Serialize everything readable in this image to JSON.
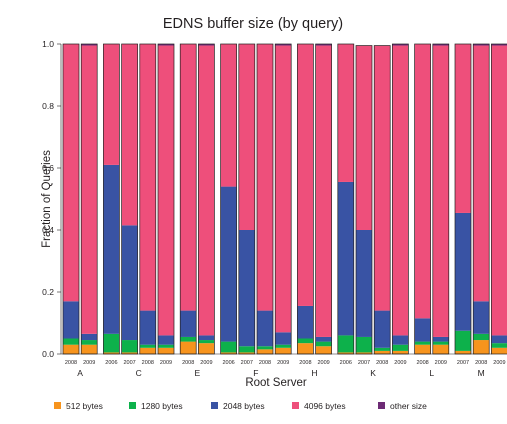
{
  "chart_data": {
    "type": "bar",
    "stacked": true,
    "title": "EDNS buffer size (by query)",
    "xlabel": "Root Server",
    "ylabel": "Fraction of Queries",
    "ylim": [
      0,
      1.0
    ],
    "yticks": [
      "0.0",
      "0.2",
      "0.4",
      "0.6",
      "0.8",
      "1.0"
    ],
    "grid": false,
    "legend_position": "bottom",
    "groups": [
      {
        "server": "A",
        "years": [
          "2008",
          "2009"
        ]
      },
      {
        "server": "C",
        "years": [
          "2006",
          "2007",
          "2008",
          "2009"
        ]
      },
      {
        "server": "E",
        "years": [
          "2008",
          "2009"
        ]
      },
      {
        "server": "F",
        "years": [
          "2006",
          "2007",
          "2008",
          "2009"
        ]
      },
      {
        "server": "H",
        "years": [
          "2008",
          "2009"
        ]
      },
      {
        "server": "K",
        "years": [
          "2006",
          "2007",
          "2008",
          "2009"
        ]
      },
      {
        "server": "L",
        "years": [
          "2008",
          "2009"
        ]
      },
      {
        "server": "M",
        "years": [
          "2007",
          "2008",
          "2009"
        ]
      }
    ],
    "series": [
      {
        "name": "512 bytes",
        "color": "#f7941d",
        "values": [
          0.03,
          0.03,
          0.005,
          0.005,
          0.02,
          0.02,
          0.04,
          0.035,
          0.005,
          0.005,
          0.015,
          0.02,
          0.035,
          0.025,
          0.005,
          0.005,
          0.01,
          0.01,
          0.03,
          0.03,
          0.01,
          0.045,
          0.02
        ]
      },
      {
        "name": "1280 bytes",
        "color": "#0db14b",
        "values": [
          0.02,
          0.015,
          0.06,
          0.04,
          0.01,
          0.01,
          0.015,
          0.01,
          0.035,
          0.02,
          0.01,
          0.01,
          0.015,
          0.015,
          0.055,
          0.05,
          0.01,
          0.02,
          0.01,
          0.01,
          0.065,
          0.02,
          0.015
        ]
      },
      {
        "name": "2048 bytes",
        "color": "#3953a4",
        "values": [
          0.12,
          0.02,
          0.545,
          0.37,
          0.11,
          0.03,
          0.085,
          0.015,
          0.5,
          0.375,
          0.115,
          0.04,
          0.105,
          0.015,
          0.495,
          0.345,
          0.12,
          0.03,
          0.075,
          0.015,
          0.38,
          0.105,
          0.025
        ]
      },
      {
        "name": "4096 bytes",
        "color": "#ee4f7b",
        "values": [
          0.83,
          0.93,
          0.39,
          0.585,
          0.86,
          0.935,
          0.86,
          0.935,
          0.46,
          0.6,
          0.86,
          0.925,
          0.845,
          0.94,
          0.445,
          0.595,
          0.855,
          0.935,
          0.885,
          0.94,
          0.545,
          0.825,
          0.935
        ]
      },
      {
        "name": "other size",
        "color": "#6d2b75",
        "values": [
          0.0,
          0.005,
          0.0,
          0.0,
          0.0,
          0.005,
          0.0,
          0.005,
          0.0,
          0.0,
          0.0,
          0.005,
          0.0,
          0.005,
          0.0,
          0.0,
          0.0,
          0.005,
          0.0,
          0.005,
          0.0,
          0.005,
          0.005
        ]
      }
    ]
  }
}
